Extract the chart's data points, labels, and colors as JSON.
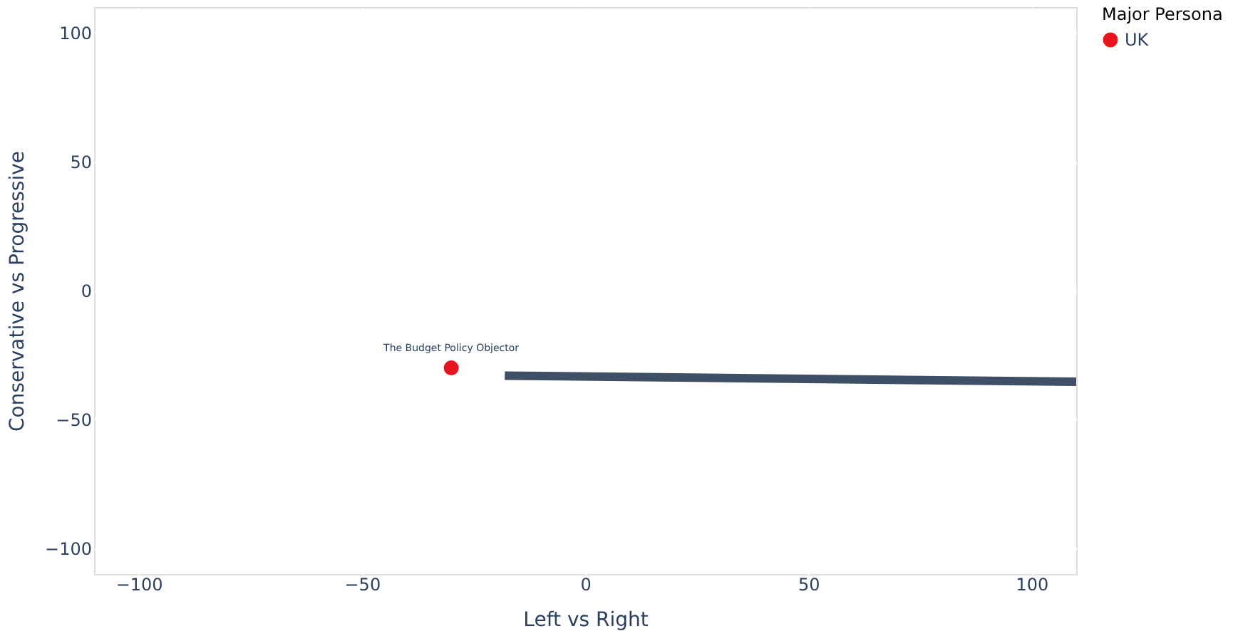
{
  "chart_data": {
    "type": "scatter",
    "xlabel": "Left vs Right",
    "ylabel": "Conservative vs Progressive",
    "legend_title": "Major Persona",
    "legend": "top right",
    "series": [
      {
        "name": "UK",
        "color": "#e8141f",
        "x": [
          -30
        ],
        "values": [
          -30
        ],
        "value_labels": [
          "The Budget Policy Objector"
        ],
        "marker": "circle"
      },
      {
        "type": "line",
        "color": "#3f4f66",
        "x": [
          -18,
          110
        ],
        "values": [
          -33,
          -35.4
        ]
      }
    ],
    "xlim": [
      -110,
      110
    ],
    "ylim": [
      -110,
      110
    ],
    "xticks": [
      -100,
      -50,
      0,
      50,
      100
    ],
    "yticks": [
      -100,
      -50,
      0,
      50,
      100
    ],
    "grid": true
  }
}
